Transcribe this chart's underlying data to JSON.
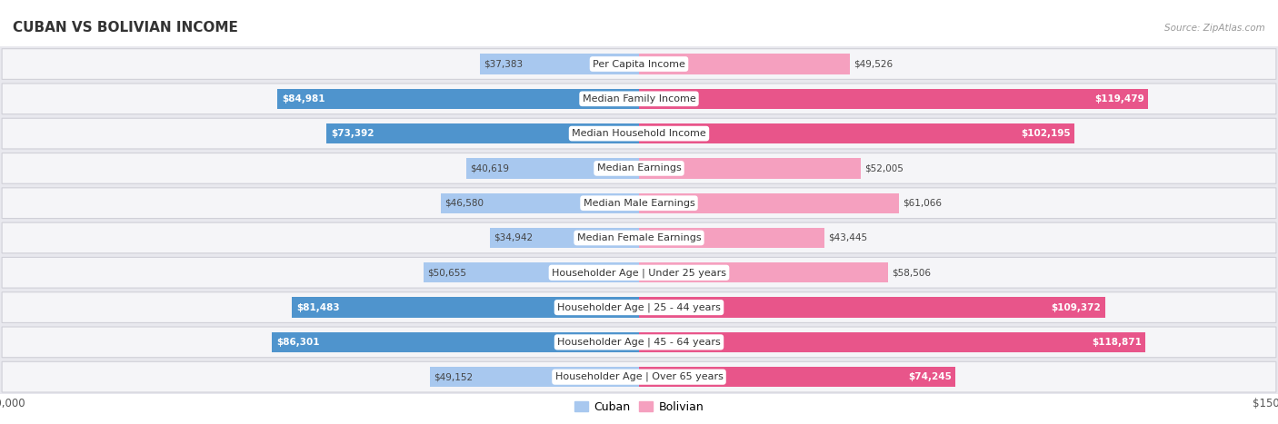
{
  "title": "Cuban vs Bolivian Income",
  "source": "Source: ZipAtlas.com",
  "categories": [
    "Per Capita Income",
    "Median Family Income",
    "Median Household Income",
    "Median Earnings",
    "Median Male Earnings",
    "Median Female Earnings",
    "Householder Age | Under 25 years",
    "Householder Age | 25 - 44 years",
    "Householder Age | 45 - 64 years",
    "Householder Age | Over 65 years"
  ],
  "cuban_values": [
    37383,
    84981,
    73392,
    40619,
    46580,
    34942,
    50655,
    81483,
    86301,
    49152
  ],
  "bolivian_values": [
    49526,
    119479,
    102195,
    52005,
    61066,
    43445,
    58506,
    109372,
    118871,
    74245
  ],
  "cuban_color_light": "#a8c8ef",
  "cuban_color_dark": "#4f94cd",
  "bolivian_color_light": "#f5a0bf",
  "bolivian_color_dark": "#e8558a",
  "max_value": 150000,
  "fig_bg": "#ffffff",
  "chart_bg": "#e8e8ee",
  "row_bg": "#f5f5f8",
  "bar_height": 0.58,
  "title_fontsize": 11,
  "label_fontsize": 8,
  "value_fontsize": 7.5,
  "legend_fontsize": 9,
  "large_threshold": 70000
}
